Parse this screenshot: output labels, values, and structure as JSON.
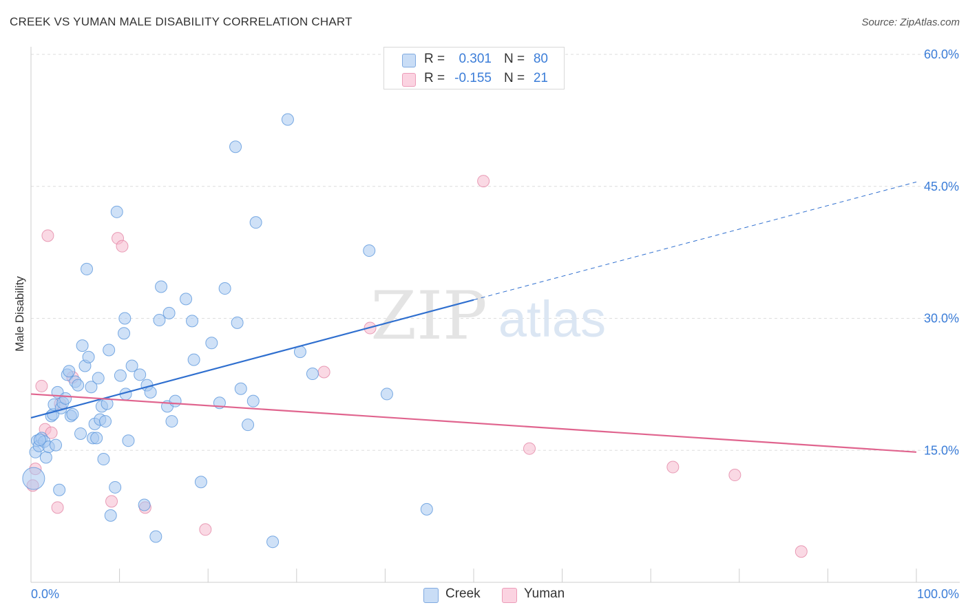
{
  "header": {
    "title": "CREEK VS YUMAN MALE DISABILITY CORRELATION CHART",
    "source": "Source: ZipAtlas.com"
  },
  "watermark": {
    "zip": "ZIP",
    "atlas": "atlas"
  },
  "legend_top": {
    "rows": [
      {
        "r_label": "R =",
        "r_value": "0.301",
        "n_label": "N =",
        "n_value": "80",
        "color": "#a8c8f0"
      },
      {
        "r_label": "R =",
        "r_value": "-0.155",
        "n_label": "N =",
        "n_value": "21",
        "color": "#f6b9ce"
      }
    ]
  },
  "legend_bottom": {
    "items": [
      {
        "label": "Creek",
        "color": "#a8c8f0"
      },
      {
        "label": "Yuman",
        "color": "#f6b9ce"
      }
    ]
  },
  "colors": {
    "creek_fill": "#a8c8f0",
    "creek_stroke": "#5a96dc",
    "creek_line": "#2f6fcf",
    "yuman_fill": "#f6b9ce",
    "yuman_stroke": "#e27fa0",
    "yuman_line": "#e0648e",
    "axis_text": "#3b7dd8",
    "grid": "#dddddd"
  },
  "chart_data": {
    "type": "scatter",
    "title": "CREEK VS YUMAN MALE DISABILITY CORRELATION CHART",
    "xlabel": "",
    "ylabel": "Male Disability",
    "xlim": [
      0,
      100
    ],
    "ylim": [
      0,
      60
    ],
    "x_tick_labels": [
      "0.0%",
      "100.0%"
    ],
    "y_ticks": [
      15,
      30,
      45,
      60
    ],
    "y_tick_labels": [
      "15.0%",
      "30.0%",
      "45.0%",
      "60.0%"
    ],
    "grid": true,
    "legend_position": "top-center",
    "series": [
      {
        "name": "Creek",
        "r": 0.301,
        "n": 80,
        "trend": {
          "x0": 0,
          "y0": 18.7,
          "x1": 50,
          "y1": 32.1,
          "x_dashed_end": 100,
          "y_dashed_end": 45.5
        },
        "points": [
          [
            0.5,
            14.8
          ],
          [
            0.7,
            16.1
          ],
          [
            0.9,
            15.5
          ],
          [
            1.2,
            16.4
          ],
          [
            1.5,
            16.0
          ],
          [
            1.7,
            14.2
          ],
          [
            2.0,
            15.4
          ],
          [
            2.3,
            18.9
          ],
          [
            2.5,
            19.1
          ],
          [
            2.6,
            20.2
          ],
          [
            2.8,
            15.6
          ],
          [
            3.0,
            21.6
          ],
          [
            3.2,
            10.5
          ],
          [
            3.4,
            19.8
          ],
          [
            3.6,
            20.4
          ],
          [
            3.9,
            20.9
          ],
          [
            4.1,
            23.6
          ],
          [
            4.3,
            24.0
          ],
          [
            4.5,
            18.9
          ],
          [
            4.7,
            19.1
          ],
          [
            5.0,
            22.8
          ],
          [
            5.3,
            22.4
          ],
          [
            5.6,
            16.9
          ],
          [
            5.8,
            26.9
          ],
          [
            6.1,
            24.6
          ],
          [
            6.3,
            35.6
          ],
          [
            6.5,
            25.6
          ],
          [
            6.8,
            22.2
          ],
          [
            7.0,
            16.4
          ],
          [
            7.2,
            18.0
          ],
          [
            7.4,
            16.4
          ],
          [
            7.6,
            23.2
          ],
          [
            7.8,
            18.5
          ],
          [
            8.0,
            20.0
          ],
          [
            8.2,
            14.0
          ],
          [
            8.4,
            18.3
          ],
          [
            8.6,
            20.3
          ],
          [
            8.8,
            26.4
          ],
          [
            9.0,
            7.6
          ],
          [
            9.5,
            10.8
          ],
          [
            9.7,
            42.1
          ],
          [
            10.1,
            23.5
          ],
          [
            10.5,
            28.3
          ],
          [
            10.6,
            30.0
          ],
          [
            10.7,
            21.4
          ],
          [
            11.0,
            16.1
          ],
          [
            11.4,
            24.6
          ],
          [
            12.3,
            23.6
          ],
          [
            12.8,
            8.8
          ],
          [
            13.1,
            22.4
          ],
          [
            13.5,
            21.6
          ],
          [
            14.1,
            5.2
          ],
          [
            14.5,
            29.8
          ],
          [
            14.7,
            33.6
          ],
          [
            15.4,
            20.0
          ],
          [
            15.6,
            30.6
          ],
          [
            15.9,
            18.3
          ],
          [
            16.3,
            20.6
          ],
          [
            17.5,
            32.2
          ],
          [
            18.2,
            29.7
          ],
          [
            18.4,
            25.3
          ],
          [
            19.2,
            11.4
          ],
          [
            20.4,
            27.2
          ],
          [
            21.3,
            20.4
          ],
          [
            21.9,
            33.4
          ],
          [
            23.1,
            49.5
          ],
          [
            23.3,
            29.5
          ],
          [
            23.7,
            22.0
          ],
          [
            24.5,
            17.9
          ],
          [
            25.1,
            20.6
          ],
          [
            25.4,
            40.9
          ],
          [
            27.3,
            4.6
          ],
          [
            29.0,
            52.6
          ],
          [
            30.4,
            26.2
          ],
          [
            31.8,
            23.7
          ],
          [
            38.2,
            37.7
          ],
          [
            40.2,
            21.4
          ],
          [
            44.7,
            8.3
          ],
          [
            0.3,
            11.8
          ],
          [
            1.0,
            16.2
          ]
        ]
      },
      {
        "name": "Yuman",
        "r": -0.155,
        "n": 21,
        "trend": {
          "x0": 0,
          "y0": 21.4,
          "x1": 100,
          "y1": 14.8
        },
        "points": [
          [
            0.2,
            11.0
          ],
          [
            0.5,
            12.9
          ],
          [
            1.2,
            22.3
          ],
          [
            1.6,
            17.4
          ],
          [
            1.9,
            39.4
          ],
          [
            2.3,
            17.0
          ],
          [
            3.0,
            8.5
          ],
          [
            3.3,
            20.3
          ],
          [
            4.7,
            23.3
          ],
          [
            9.1,
            9.2
          ],
          [
            9.8,
            39.1
          ],
          [
            10.3,
            38.2
          ],
          [
            12.9,
            8.5
          ],
          [
            19.7,
            6.0
          ],
          [
            33.1,
            23.9
          ],
          [
            38.3,
            28.9
          ],
          [
            51.1,
            45.6
          ],
          [
            56.3,
            15.2
          ],
          [
            72.5,
            13.1
          ],
          [
            79.5,
            12.2
          ],
          [
            87.0,
            3.5
          ]
        ]
      }
    ]
  }
}
